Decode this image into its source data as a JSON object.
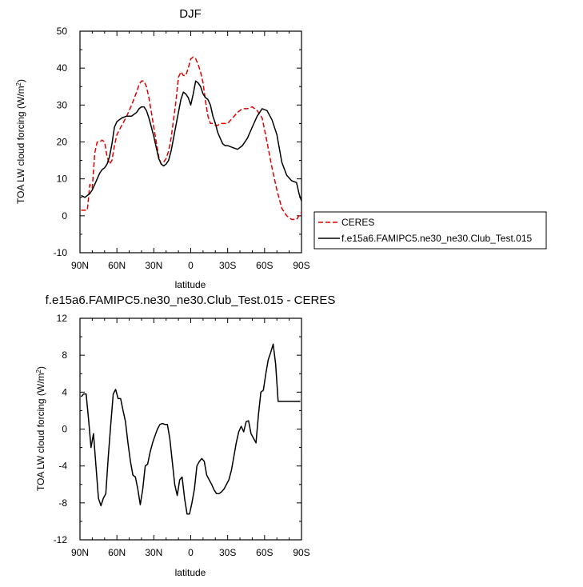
{
  "chart_data": [
    {
      "type": "line",
      "title": "DJF",
      "xlabel": "latitude",
      "ylabel": "TOA LW cloud forcing (W/m",
      "ylabel_sup": "2",
      "ylabel_close": ")",
      "xlim": [
        90,
        -90
      ],
      "ylim": [
        -10,
        50
      ],
      "xticks": [
        90,
        60,
        30,
        0,
        -30,
        -60,
        -90
      ],
      "xtick_labels": [
        "90N",
        "60N",
        "30N",
        "0",
        "30S",
        "60S",
        "90S"
      ],
      "yticks": [
        -10,
        0,
        10,
        20,
        30,
        40,
        50
      ],
      "ytick_labels": [
        "-10",
        "0",
        "10",
        "20",
        "30",
        "40",
        "50"
      ],
      "legend": "outside-right",
      "series": [
        {
          "name": "CERES",
          "color": "#e00000",
          "dash": true,
          "x": [
            89,
            86,
            84,
            82,
            80,
            78,
            76,
            74,
            72,
            70,
            68,
            66,
            64,
            62,
            60,
            56,
            52,
            48,
            44,
            42,
            40,
            38,
            36,
            34,
            32,
            30,
            28,
            26,
            24,
            22,
            20,
            18,
            16,
            14,
            12,
            10,
            8,
            6,
            4,
            2,
            0,
            -2,
            -4,
            -6,
            -8,
            -10,
            -12,
            -14,
            -16,
            -18,
            -20,
            -22,
            -24,
            -26,
            -28,
            -30,
            -34,
            -38,
            -42,
            -46,
            -50,
            -54,
            -58,
            -62,
            -66,
            -70,
            -74,
            -78,
            -82,
            -86,
            -88,
            -90
          ],
          "y": [
            1.5,
            1.5,
            1.5,
            8.5,
            7.5,
            17,
            20,
            20,
            20.5,
            20,
            16,
            14,
            15,
            19,
            22,
            24.5,
            27,
            30,
            33.5,
            35.5,
            36.5,
            36.5,
            35,
            32,
            28,
            24,
            20,
            16,
            14,
            14.5,
            15.5,
            17.5,
            21,
            26,
            31,
            37.5,
            39,
            38,
            38,
            40,
            42.5,
            43,
            42.5,
            41,
            39,
            36,
            31,
            27,
            25,
            25,
            24.5,
            24.5,
            25,
            25,
            25,
            25,
            26.5,
            28,
            29,
            29,
            29.5,
            28.5,
            26.5,
            20,
            13,
            7,
            2,
            0,
            -1,
            -1,
            0,
            1
          ]
        },
        {
          "name": "f.e15a6.FAMIPC5.ne30_ne30.Club_Test.015",
          "color": "#000000",
          "dash": false,
          "x": [
            89,
            86,
            84,
            82,
            80,
            78,
            76,
            74,
            72,
            70,
            68,
            66,
            64,
            62,
            60,
            58,
            56,
            52,
            48,
            44,
            42,
            40,
            38,
            36,
            34,
            32,
            30,
            28,
            26,
            24,
            22,
            20,
            18,
            16,
            14,
            12,
            10,
            8,
            6,
            4,
            2,
            0,
            -2,
            -4,
            -6,
            -8,
            -10,
            -12,
            -14,
            -16,
            -18,
            -20,
            -22,
            -24,
            -26,
            -28,
            -30,
            -34,
            -38,
            -42,
            -46,
            -50,
            -54,
            -58,
            -62,
            -66,
            -70,
            -74,
            -78,
            -82,
            -86,
            -88,
            -90
          ],
          "y": [
            5.5,
            5,
            5.5,
            6,
            7,
            8.5,
            10,
            11.5,
            12.5,
            13,
            14,
            16,
            19.5,
            24,
            25.5,
            26,
            26.5,
            27,
            27,
            28,
            29,
            29.5,
            29.5,
            28.5,
            26.5,
            24,
            21.5,
            18.5,
            15.5,
            14,
            13.5,
            14,
            15,
            17.5,
            21,
            24.5,
            28,
            31.5,
            33.5,
            33,
            32,
            30,
            33,
            36.5,
            36,
            35,
            33,
            32,
            31.5,
            30,
            27,
            25,
            22.5,
            21,
            19.5,
            19,
            19,
            18.5,
            18,
            19,
            21,
            24,
            27,
            29,
            28.5,
            26,
            22,
            14.5,
            11,
            9.5,
            9,
            6,
            4
          ]
        }
      ]
    },
    {
      "type": "line",
      "title": "f.e15a6.FAMIPC5.ne30_ne30.Club_Test.015 - CERES",
      "xlabel": "latitude",
      "ylabel": "TOA LW cloud forcing (W/m",
      "ylabel_sup": "2",
      "ylabel_close": ")",
      "xlim": [
        90,
        -90
      ],
      "ylim": [
        -12,
        12
      ],
      "xticks": [
        90,
        60,
        30,
        0,
        -30,
        -60,
        -90
      ],
      "xtick_labels": [
        "90N",
        "60N",
        "30N",
        "0",
        "30S",
        "60S",
        "90S"
      ],
      "yticks": [
        -12,
        -8,
        -4,
        0,
        4,
        8,
        12
      ],
      "ytick_labels": [
        "-12",
        "-8",
        "-4",
        "0",
        "4",
        "8",
        "12"
      ],
      "series": [
        {
          "color": "#000000",
          "dash": false,
          "x": [
            89,
            87,
            85,
            83,
            81,
            79,
            77,
            75,
            73,
            71,
            69,
            67,
            65,
            63,
            61,
            59,
            57,
            55,
            53,
            51,
            49,
            47,
            45,
            43,
            41,
            39,
            37,
            35,
            33,
            31,
            29,
            27,
            25,
            23,
            21,
            19,
            17,
            15,
            13,
            11,
            9,
            7,
            5,
            3,
            1,
            -1,
            -3,
            -5,
            -7,
            -9,
            -11,
            -13,
            -15,
            -17,
            -19,
            -21,
            -23,
            -25,
            -27,
            -29,
            -31,
            -33,
            -35,
            -37,
            -39,
            -41,
            -43,
            -45,
            -47,
            -49,
            -51,
            -53,
            -55,
            -57,
            -59,
            -61,
            -63,
            -65,
            -67,
            -69,
            -71,
            -73,
            -75,
            -77,
            -79,
            -81,
            -83,
            -85,
            -87,
            -89
          ],
          "y": [
            3.5,
            3.8,
            3.8,
            1,
            -2,
            -0.5,
            -4,
            -7.5,
            -8.3,
            -7.5,
            -7,
            -3,
            0.5,
            3.8,
            4.3,
            3.3,
            3.3,
            2,
            0.8,
            -1.5,
            -3.5,
            -5,
            -5.2,
            -6.5,
            -8.2,
            -6.5,
            -4,
            -3.8,
            -2.5,
            -1.5,
            -0.7,
            0,
            0.5,
            0.6,
            0.5,
            0.5,
            -1,
            -3.5,
            -6,
            -7.2,
            -5.5,
            -5.2,
            -7.5,
            -9.2,
            -9.2,
            -8,
            -6.5,
            -4,
            -3.5,
            -3.2,
            -3.5,
            -5,
            -5.5,
            -6,
            -6.6,
            -7,
            -7,
            -6.8,
            -6.5,
            -6,
            -5.5,
            -4.5,
            -3,
            -1.5,
            -0.3,
            0.3,
            -0.3,
            0.8,
            0.9,
            -0.5,
            -1,
            -1.5,
            1.5,
            4,
            4.2,
            6,
            7.5,
            8.3,
            9.2,
            7,
            3,
            3,
            3,
            3,
            3,
            3,
            3,
            3,
            3,
            3
          ]
        }
      ]
    }
  ]
}
